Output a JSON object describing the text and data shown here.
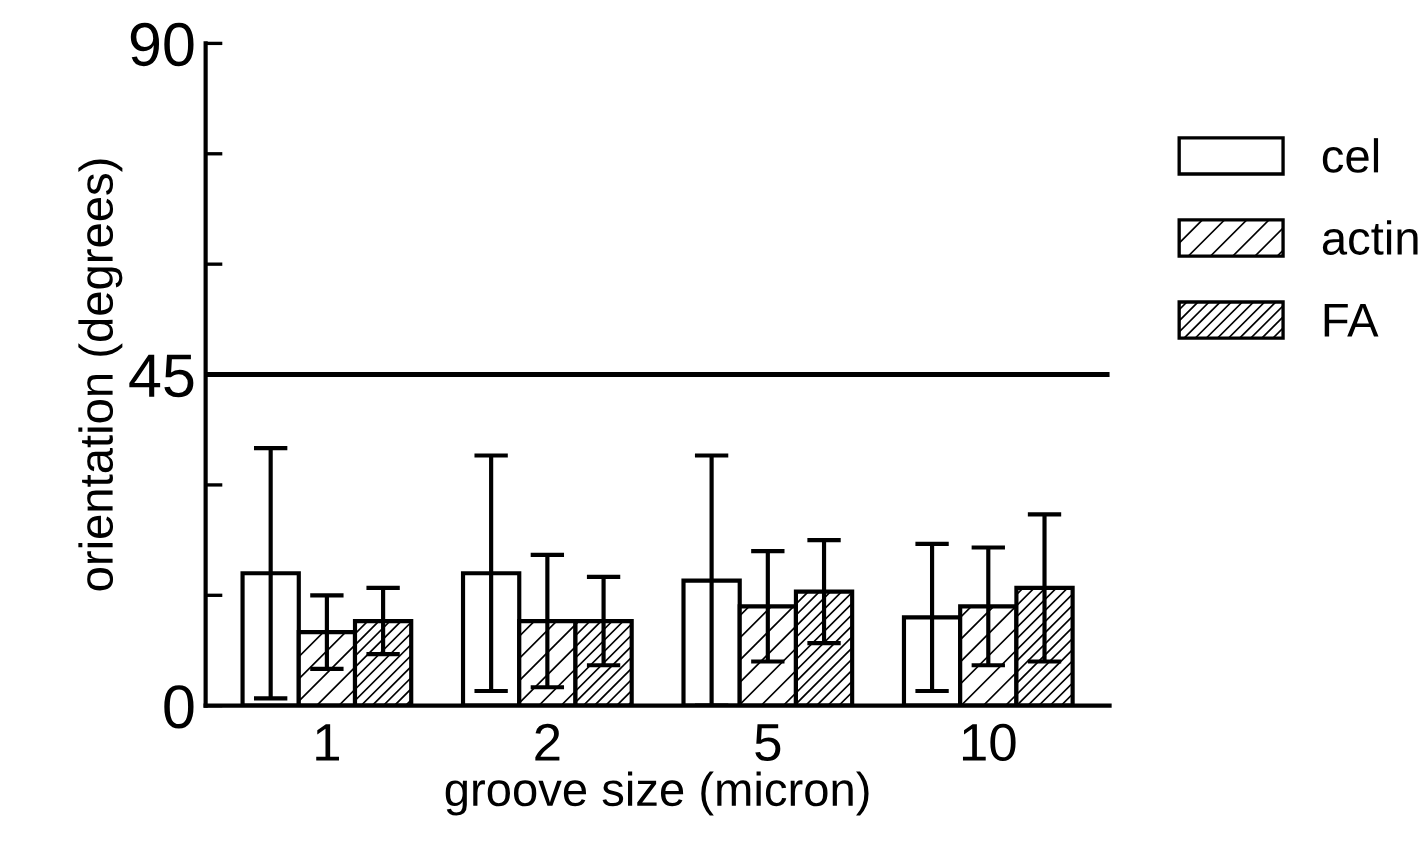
{
  "chart_data": {
    "type": "bar",
    "xlabel": "groove size (micron)",
    "ylabel": "orientation (degrees)",
    "categories": [
      "1",
      "2",
      "5",
      "10"
    ],
    "series": [
      {
        "name": "cel",
        "color": "#ffffff",
        "values": [
          18,
          18,
          17,
          12
        ],
        "errors": [
          17,
          16,
          17,
          10
        ]
      },
      {
        "name": "actin",
        "color": "#000000",
        "values": [
          10,
          11.5,
          13.5,
          13.5
        ],
        "errors": [
          5,
          9,
          7.5,
          8
        ]
      },
      {
        "name": "FA",
        "color": "#000000",
        "values": [
          11.5,
          11.5,
          15.5,
          16
        ],
        "errors": [
          4.5,
          6,
          7,
          10
        ]
      }
    ],
    "ylim": [
      0,
      90
    ],
    "yticks": [
      0,
      {
        "value": 15,
        "label": null
      },
      {
        "value": 30,
        "label": null
      },
      45,
      {
        "value": 60,
        "label": null
      },
      {
        "value": 75,
        "label": null
      },
      90
    ],
    "ref_lines": [
      {
        "axis": "y",
        "value": 45,
        "color": "#000000"
      }
    ],
    "grid": false,
    "legend": "right"
  }
}
